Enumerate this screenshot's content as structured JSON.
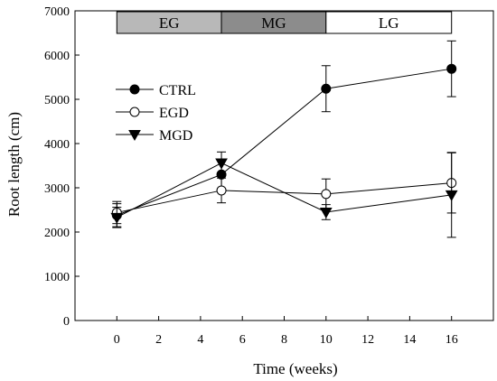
{
  "chart_data": {
    "type": "line",
    "xlabel": "Time (weeks)",
    "ylabel": "Root length (cm)",
    "xlim": [
      -2,
      18
    ],
    "ylim": [
      0,
      7000
    ],
    "xticks": [
      0,
      2,
      4,
      6,
      8,
      10,
      12,
      14,
      16
    ],
    "yticks": [
      0,
      1000,
      2000,
      3000,
      4000,
      5000,
      6000,
      7000
    ],
    "grid": false,
    "legend_position": "upper-left",
    "stage_bands": [
      {
        "label": "EG",
        "from": 0,
        "to": 5,
        "color": "#b8b8b8"
      },
      {
        "label": "MG",
        "from": 5,
        "to": 10,
        "color": "#8c8c8c"
      },
      {
        "label": "LG",
        "from": 10,
        "to": 16,
        "color": "#ffffff"
      }
    ],
    "series": [
      {
        "name": "CTRL",
        "marker": "filled-circle",
        "x": [
          0,
          5,
          10,
          16
        ],
        "y": [
          2380,
          3300,
          5240,
          5690
        ],
        "err": [
          260,
          320,
          520,
          630
        ]
      },
      {
        "name": "EGD",
        "marker": "open-circle",
        "x": [
          0,
          5,
          10,
          16
        ],
        "y": [
          2440,
          2940,
          2860,
          3110
        ],
        "err": [
          250,
          280,
          340,
          680
        ]
      },
      {
        "name": "MGD",
        "marker": "filled-triangle-down",
        "x": [
          0,
          5,
          10,
          16
        ],
        "y": [
          2330,
          3560,
          2450,
          2840
        ],
        "err": [
          230,
          250,
          170,
          960
        ]
      }
    ]
  }
}
